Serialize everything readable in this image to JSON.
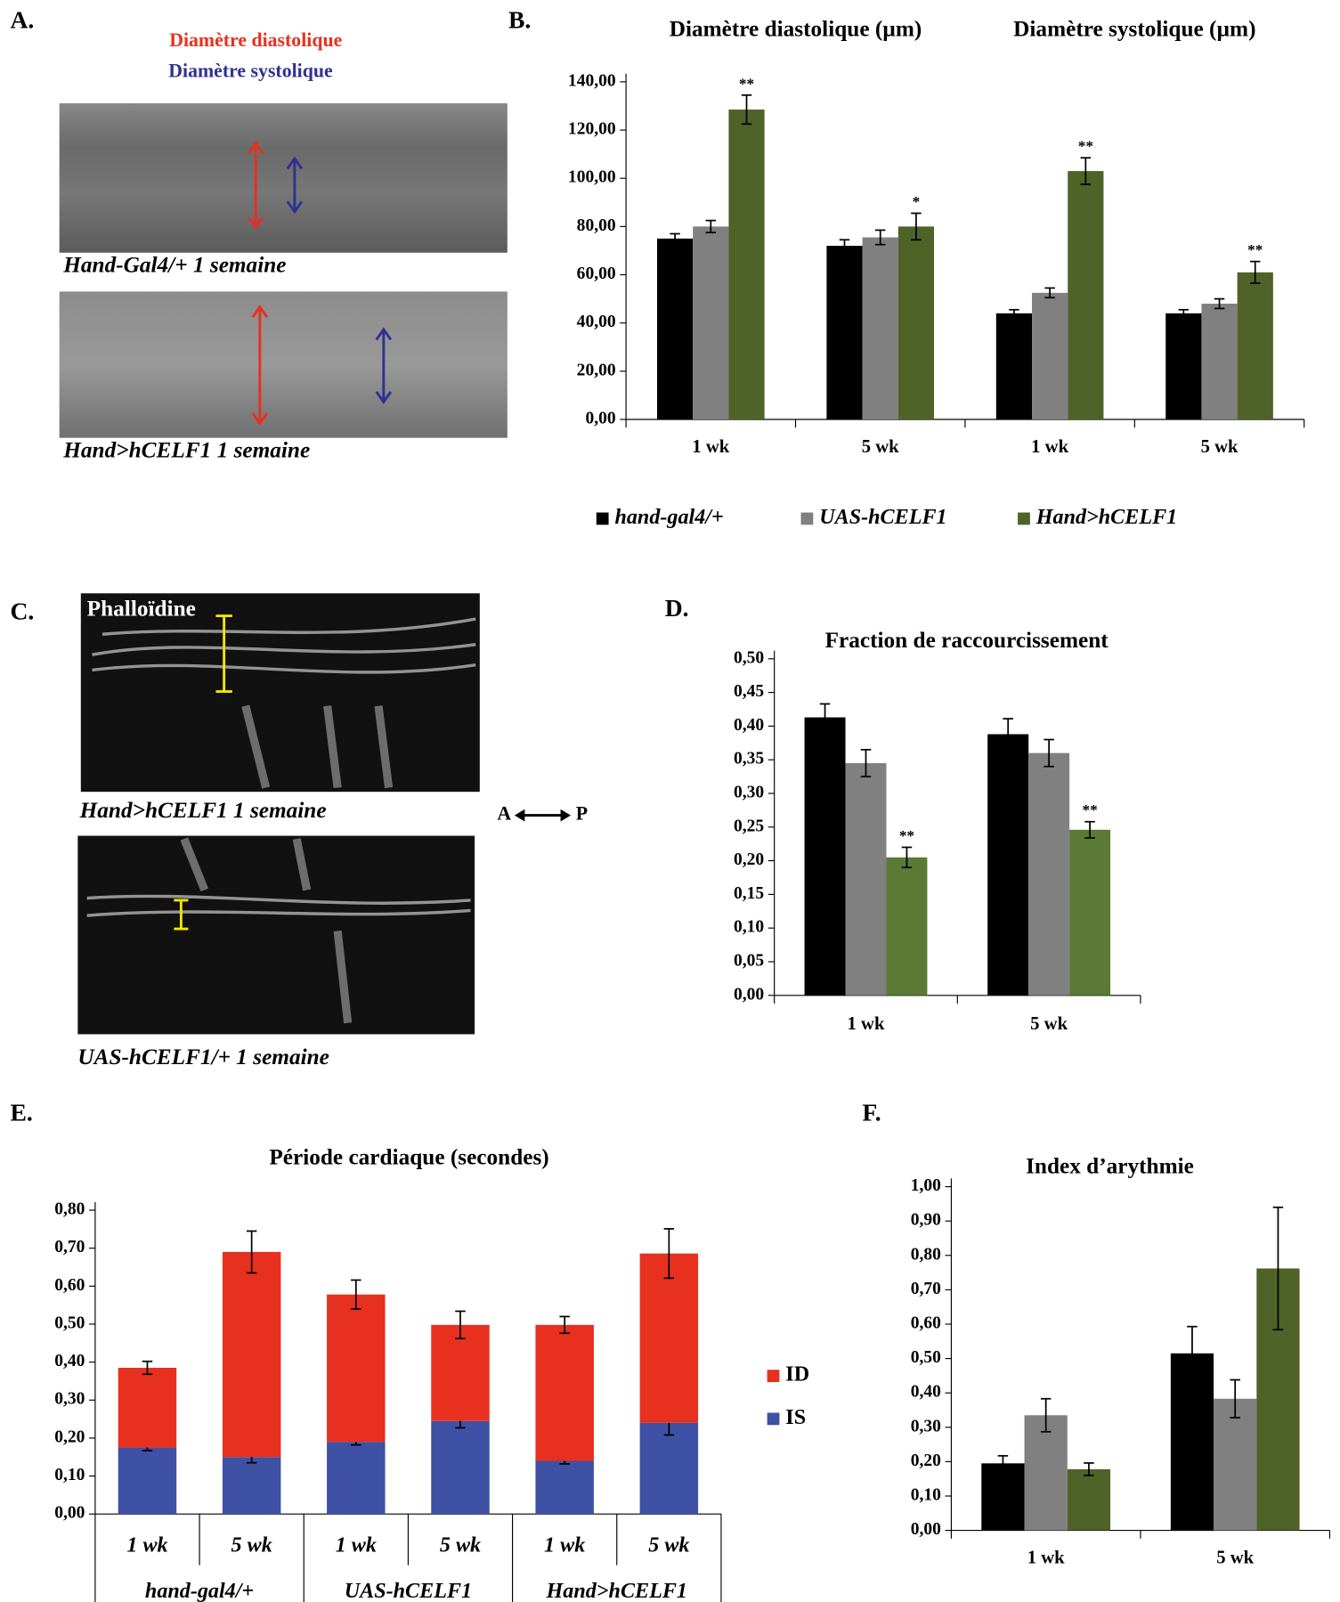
{
  "panel_a": {
    "label": "A.",
    "legend": [
      "Diamètre diastolique",
      "Diamètre systolique"
    ],
    "captions": [
      "Hand-Gal4/+ 1 semaine",
      "Hand>hCELF1 1 semaine"
    ]
  },
  "panel_c": {
    "label": "C.",
    "stain": "Phalloïdine",
    "captions": [
      "Hand>hCELF1 1 semaine",
      "UAS-hCELF1/+ 1 semaine"
    ],
    "axis": [
      "A",
      "P"
    ]
  },
  "chart_data": [
    {
      "type": "bar",
      "panel": "B.",
      "groups": [
        "Diamètre diastolique (µm)",
        "Diamètre systolique (µm)"
      ],
      "categories": [
        "1 wk",
        "5 wk",
        "1 wk",
        "5 wk"
      ],
      "series": [
        {
          "name": "hand-gal4/+",
          "color": "#000000",
          "values": [
            75,
            72,
            44,
            44
          ],
          "errors": [
            2,
            2.5,
            1.5,
            1.5
          ]
        },
        {
          "name": "UAS-hCELF1",
          "color": "#808080",
          "values": [
            80,
            75.5,
            52.5,
            48
          ],
          "errors": [
            2.5,
            3,
            2,
            2
          ]
        },
        {
          "name": "Hand>hCELF1",
          "color": "#4f6228",
          "values": [
            128.5,
            80,
            103,
            61
          ],
          "errors": [
            6,
            5.5,
            5.5,
            4.5
          ],
          "annotations": [
            "**",
            "*",
            "**",
            "**"
          ]
        }
      ],
      "ylim": [
        0,
        140
      ],
      "yticks": [
        {
          "value": 0,
          "label": "0,00"
        },
        {
          "value": 20,
          "label": "20,00"
        },
        {
          "value": 40,
          "label": "40,00"
        },
        {
          "value": 60,
          "label": "60,00"
        },
        {
          "value": 80,
          "label": "80,00"
        },
        {
          "value": 100,
          "label": "100,00"
        },
        {
          "value": 120,
          "label": "120,00"
        },
        {
          "value": 140,
          "label": "140,00"
        }
      ],
      "legend": "bottom"
    },
    {
      "type": "bar",
      "panel": "D.",
      "title": "Fraction de raccourcissement",
      "categories": [
        "1 wk",
        "5 wk"
      ],
      "series": [
        {
          "color": "#000000",
          "values": [
            0.413,
            0.388
          ],
          "errors": [
            0.02,
            0.023
          ]
        },
        {
          "color": "#808080",
          "values": [
            0.345,
            0.36
          ],
          "errors": [
            0.02,
            0.02
          ]
        },
        {
          "color": "#5b7a35",
          "values": [
            0.205,
            0.246
          ],
          "errors": [
            0.015,
            0.012
          ],
          "annotations": [
            "**",
            "**"
          ]
        }
      ],
      "ylim": [
        0,
        0.5
      ],
      "yticks": [
        {
          "value": 0,
          "label": "0,00"
        },
        {
          "value": 0.05,
          "label": "0,05"
        },
        {
          "value": 0.1,
          "label": "0,10"
        },
        {
          "value": 0.15,
          "label": "0,15"
        },
        {
          "value": 0.2,
          "label": "0,20"
        },
        {
          "value": 0.25,
          "label": "0,25"
        },
        {
          "value": 0.3,
          "label": "0,30"
        },
        {
          "value": 0.35,
          "label": "0,35"
        },
        {
          "value": 0.4,
          "label": "0,40"
        },
        {
          "value": 0.45,
          "label": "0,45"
        },
        {
          "value": 0.5,
          "label": "0,50"
        }
      ]
    },
    {
      "type": "stacked_bar",
      "panel": "E.",
      "title": "Période cardiaque (secondes)",
      "categories": [
        "1 wk",
        "5 wk",
        "1 wk",
        "5 wk",
        "1 wk",
        "5 wk"
      ],
      "groups": [
        "hand-gal4/+",
        "UAS-hCELF1",
        "Hand>hCELF1"
      ],
      "series": [
        {
          "name": "IS",
          "color": "#3f51a4",
          "values": [
            0.175,
            0.15,
            0.19,
            0.245,
            0.14,
            0.24
          ],
          "errors": [
            0.008,
            0.015,
            0.008,
            0.018,
            0.008,
            0.032
          ]
        },
        {
          "name": "ID",
          "color": "#e8301f",
          "values": [
            0.21,
            0.54,
            0.388,
            0.253,
            0.358,
            0.446
          ],
          "errors": [
            0.017,
            0.055,
            0.038,
            0.036,
            0.022,
            0.065
          ]
        }
      ],
      "ylim": [
        0,
        0.8
      ],
      "yticks": [
        {
          "value": 0,
          "label": "0,00"
        },
        {
          "value": 0.1,
          "label": "0,10"
        },
        {
          "value": 0.2,
          "label": "0,20"
        },
        {
          "value": 0.3,
          "label": "0,30"
        },
        {
          "value": 0.4,
          "label": "0,40"
        },
        {
          "value": 0.5,
          "label": "0,50"
        },
        {
          "value": 0.6,
          "label": "0,60"
        },
        {
          "value": 0.7,
          "label": "0,70"
        },
        {
          "value": 0.8,
          "label": "0,80"
        }
      ],
      "legend": "right"
    },
    {
      "type": "bar",
      "panel": "F.",
      "title": "Index d’arythmie",
      "categories": [
        "1 wk",
        "5 wk"
      ],
      "series": [
        {
          "color": "#000000",
          "values": [
            0.195,
            0.515
          ],
          "errors": [
            0.022,
            0.078
          ]
        },
        {
          "color": "#808080",
          "values": [
            0.335,
            0.383
          ],
          "errors": [
            0.048,
            0.055
          ]
        },
        {
          "color": "#4f6228",
          "values": [
            0.178,
            0.762
          ],
          "errors": [
            0.018,
            0.178
          ]
        }
      ],
      "ylim": [
        0,
        1
      ],
      "yticks": [
        {
          "value": 0,
          "label": "0,00"
        },
        {
          "value": 0.1,
          "label": "0,10"
        },
        {
          "value": 0.2,
          "label": "0,20"
        },
        {
          "value": 0.3,
          "label": "0,30"
        },
        {
          "value": 0.4,
          "label": "0,40"
        },
        {
          "value": 0.5,
          "label": "0,50"
        },
        {
          "value": 0.6,
          "label": "0,60"
        },
        {
          "value": 0.7,
          "label": "0,70"
        },
        {
          "value": 0.8,
          "label": "0,80"
        },
        {
          "value": 0.9,
          "label": "0,90"
        },
        {
          "value": 1,
          "label": "1,00"
        }
      ]
    }
  ]
}
